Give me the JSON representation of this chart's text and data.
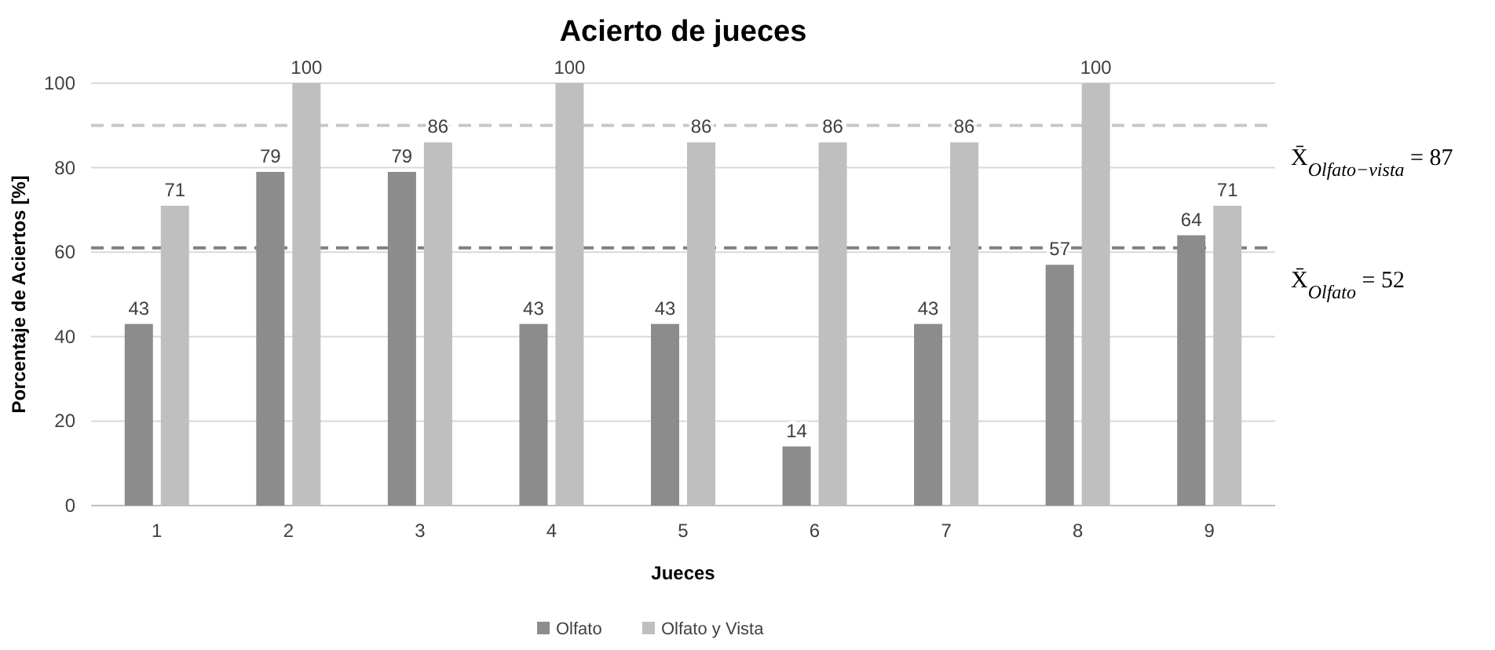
{
  "chart_data": {
    "type": "bar",
    "title": "Acierto de jueces",
    "xlabel": "Jueces",
    "ylabel": "Porcentaje de Aciertos [%]",
    "categories": [
      "1",
      "2",
      "3",
      "4",
      "5",
      "6",
      "7",
      "8",
      "9"
    ],
    "series": [
      {
        "name": "Olfato",
        "color": "#8c8c8c",
        "values": [
          43,
          79,
          79,
          43,
          43,
          14,
          43,
          57,
          64
        ]
      },
      {
        "name": "Olfato y Vista",
        "color": "#bfbfbf",
        "values": [
          71,
          100,
          86,
          100,
          86,
          86,
          86,
          100,
          71
        ]
      }
    ],
    "data_labels": true,
    "ylim": [
      0,
      100
    ],
    "yticks": [
      0,
      20,
      40,
      60,
      80,
      100
    ],
    "grid": "y",
    "legend": "bottom",
    "ref_lines": [
      {
        "axis": "y",
        "value": 90,
        "color": "#c8c8c8",
        "line_style": "dashed"
      },
      {
        "axis": "y",
        "value": 61,
        "color": "#808080",
        "line_style": "dashed"
      }
    ],
    "annotations": [
      "X̄$_{Olfato−vista}$ = 87",
      "X̄$_{Olfato}$ = 52"
    ]
  }
}
